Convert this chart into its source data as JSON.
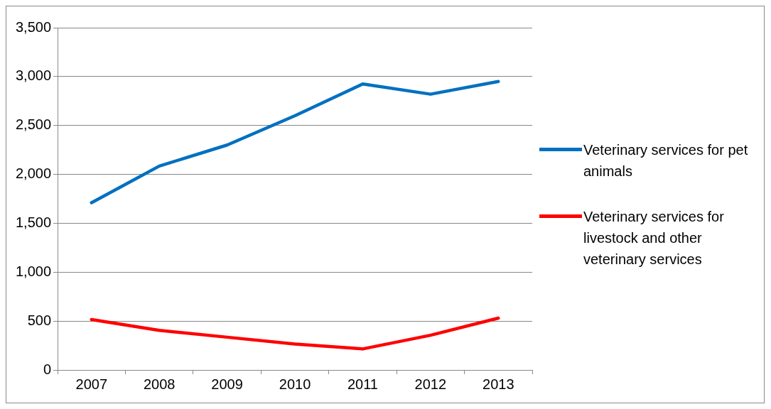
{
  "chart_data": {
    "type": "line",
    "categories": [
      "2007",
      "2008",
      "2009",
      "2010",
      "2011",
      "2012",
      "2013"
    ],
    "series": [
      {
        "name": "Veterinary services for pet animals",
        "color": "#0070c0",
        "values": [
          1710,
          2085,
          2300,
          2600,
          2925,
          2820,
          2950
        ]
      },
      {
        "name": "Veterinary services for livestock and other veterinary services",
        "color": "#ff0000",
        "values": [
          515,
          405,
          335,
          265,
          215,
          355,
          530
        ]
      }
    ],
    "ylim": [
      0,
      3500
    ],
    "yticks": [
      0,
      500,
      {
        "value": 1000,
        "label": "1,000"
      },
      {
        "value": 1500,
        "label": "1,500"
      },
      {
        "value": 2000,
        "label": "2,000"
      },
      {
        "value": 2500,
        "label": "2,500"
      },
      {
        "value": 3000,
        "label": "3,000"
      },
      {
        "value": 3500,
        "label": "3,500"
      }
    ],
    "grid": "y",
    "legend": "right",
    "marker": "none",
    "line_style": "solid"
  }
}
